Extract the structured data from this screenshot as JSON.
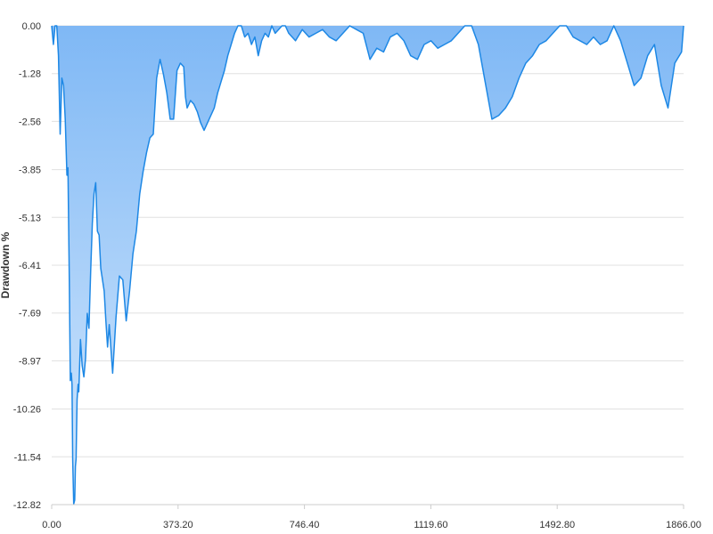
{
  "colors": {
    "line": "#1e88e5",
    "fill_top": "#7fb8f5",
    "fill_bottom": "#d4e8fd",
    "grid": "#e0e0e0",
    "axis": "#cccccc",
    "text": "#333333"
  },
  "chart_data": {
    "type": "area",
    "title": "",
    "xlabel": "",
    "ylabel": "Drawdown %",
    "xlim": [
      0,
      1866
    ],
    "ylim": [
      -12.82,
      0
    ],
    "x_ticks": [
      0,
      373.2,
      746.4,
      1119.6,
      1492.8,
      1866
    ],
    "x_tick_labels": [
      "0.00",
      "373.20",
      "746.40",
      "1119.60",
      "1492.80",
      "1866.00"
    ],
    "y_ticks": [
      0,
      -1.28,
      -2.56,
      -3.85,
      -5.13,
      -6.41,
      -7.69,
      -8.97,
      -10.26,
      -11.54,
      -12.82
    ],
    "y_tick_labels": [
      "0.00",
      "-1.28",
      "-2.56",
      "-3.85",
      "-5.13",
      "-6.41",
      "-7.69",
      "-8.97",
      "-10.26",
      "-11.54",
      "-12.82"
    ],
    "grid": true,
    "legend": "none",
    "series": [
      {
        "x": [
          0,
          5,
          10,
          15,
          20,
          25,
          30,
          35,
          40,
          45,
          48,
          50,
          52,
          55,
          58,
          60,
          62,
          65,
          68,
          70,
          72,
          75,
          78,
          80,
          85,
          90,
          95,
          100,
          105,
          110,
          115,
          120,
          125,
          130,
          135,
          140,
          145,
          150,
          155,
          160,
          165,
          170,
          180,
          190,
          200,
          210,
          220,
          230,
          240,
          250,
          260,
          270,
          280,
          290,
          300,
          310,
          320,
          330,
          340,
          350,
          360,
          370,
          380,
          390,
          395,
          400,
          410,
          420,
          430,
          440,
          450,
          460,
          470,
          480,
          490,
          500,
          510,
          520,
          530,
          540,
          550,
          560,
          570,
          580,
          590,
          600,
          610,
          620,
          630,
          640,
          650,
          660,
          670,
          680,
          690,
          700,
          720,
          740,
          760,
          780,
          800,
          820,
          840,
          860,
          880,
          900,
          920,
          940,
          960,
          980,
          1000,
          1020,
          1040,
          1060,
          1080,
          1100,
          1120,
          1140,
          1160,
          1180,
          1200,
          1220,
          1240,
          1260,
          1280,
          1300,
          1320,
          1340,
          1360,
          1380,
          1400,
          1420,
          1440,
          1460,
          1480,
          1500,
          1520,
          1540,
          1560,
          1580,
          1600,
          1620,
          1640,
          1660,
          1680,
          1700,
          1720,
          1740,
          1760,
          1780,
          1800,
          1820,
          1840,
          1860,
          1866
        ],
        "y": [
          0,
          -0.5,
          0,
          0,
          -0.8,
          -2.9,
          -1.4,
          -1.6,
          -2.5,
          -4.0,
          -3.8,
          -5.3,
          -6.8,
          -9.5,
          -9.3,
          -9.6,
          -11.6,
          -12.8,
          -12.7,
          -11.8,
          -11.6,
          -10.0,
          -9.6,
          -9.8,
          -8.4,
          -9.1,
          -9.4,
          -8.9,
          -7.7,
          -8.1,
          -6.6,
          -5.3,
          -4.5,
          -4.2,
          -5.5,
          -5.6,
          -6.5,
          -6.8,
          -7.1,
          -7.9,
          -8.6,
          -8.0,
          -9.3,
          -7.8,
          -6.7,
          -6.8,
          -7.9,
          -7.1,
          -6.1,
          -5.5,
          -4.5,
          -3.9,
          -3.4,
          -3.0,
          -2.9,
          -1.4,
          -0.9,
          -1.3,
          -1.8,
          -2.5,
          -2.5,
          -1.2,
          -1.0,
          -1.1,
          -1.9,
          -2.2,
          -2.0,
          -2.1,
          -2.3,
          -2.6,
          -2.8,
          -2.6,
          -2.4,
          -2.2,
          -1.8,
          -1.5,
          -1.2,
          -0.8,
          -0.5,
          -0.2,
          0,
          0,
          -0.3,
          -0.2,
          -0.5,
          -0.3,
          -0.8,
          -0.4,
          -0.2,
          -0.3,
          0,
          -0.2,
          -0.1,
          0,
          0,
          -0.2,
          -0.4,
          -0.1,
          -0.3,
          -0.2,
          -0.1,
          -0.3,
          -0.4,
          -0.2,
          0,
          -0.1,
          -0.2,
          -0.9,
          -0.6,
          -0.7,
          -0.3,
          -0.2,
          -0.4,
          -0.8,
          -0.9,
          -0.5,
          -0.4,
          -0.6,
          -0.5,
          -0.4,
          -0.2,
          0,
          0,
          -0.5,
          -1.5,
          -2.5,
          -2.4,
          -2.2,
          -1.9,
          -1.4,
          -1.0,
          -0.8,
          -0.5,
          -0.4,
          -0.2,
          0,
          0,
          -0.3,
          -0.4,
          -0.5,
          -0.3,
          -0.5,
          -0.4,
          0,
          -0.4,
          -1.0,
          -1.6,
          -1.4,
          -0.8,
          -0.5,
          -1.6,
          -2.2,
          -1.0,
          -0.7,
          0
        ]
      }
    ]
  }
}
